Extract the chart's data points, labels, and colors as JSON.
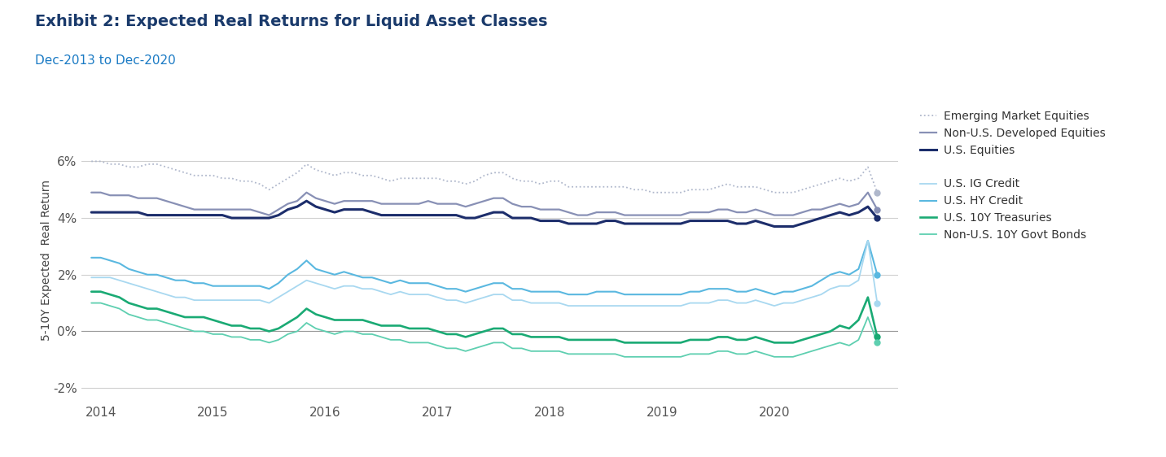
{
  "title": "Exhibit 2: Expected Real Returns for Liquid Asset Classes",
  "subtitle": "Dec-2013 to Dec-2020",
  "ylabel": "5-10Y Expected  Real Return",
  "xlim": [
    2013.83,
    2021.1
  ],
  "ylim": [
    -0.025,
    0.075
  ],
  "yticks": [
    -0.02,
    0.0,
    0.02,
    0.04,
    0.06
  ],
  "ytick_labels": [
    "-2%",
    "0%",
    "2%",
    "4%",
    "6%"
  ],
  "xticks": [
    2014,
    2015,
    2016,
    2017,
    2018,
    2019,
    2020
  ],
  "background_color": "#ffffff",
  "grid_color": "#d0d0d0",
  "title_color": "#1a3a6b",
  "subtitle_color": "#1a7ac4",
  "series": [
    {
      "name": "Emerging Market Equities",
      "color": "#b0b8cc",
      "linewidth": 1.3,
      "linestyle": "dotted",
      "values": [
        0.06,
        0.06,
        0.059,
        0.059,
        0.058,
        0.058,
        0.059,
        0.059,
        0.058,
        0.057,
        0.056,
        0.055,
        0.055,
        0.055,
        0.054,
        0.054,
        0.053,
        0.053,
        0.052,
        0.05,
        0.052,
        0.054,
        0.056,
        0.059,
        0.057,
        0.056,
        0.055,
        0.056,
        0.056,
        0.055,
        0.055,
        0.054,
        0.053,
        0.054,
        0.054,
        0.054,
        0.054,
        0.054,
        0.053,
        0.053,
        0.052,
        0.053,
        0.055,
        0.056,
        0.056,
        0.054,
        0.053,
        0.053,
        0.052,
        0.053,
        0.053,
        0.051,
        0.051,
        0.051,
        0.051,
        0.051,
        0.051,
        0.051,
        0.05,
        0.05,
        0.049,
        0.049,
        0.049,
        0.049,
        0.05,
        0.05,
        0.05,
        0.051,
        0.052,
        0.051,
        0.051,
        0.051,
        0.05,
        0.049,
        0.049,
        0.049,
        0.05,
        0.051,
        0.052,
        0.053,
        0.054,
        0.053,
        0.054,
        0.058,
        0.049
      ]
    },
    {
      "name": "Non-U.S. Developed Equities",
      "color": "#8890b5",
      "linewidth": 1.6,
      "linestyle": "solid",
      "values": [
        0.049,
        0.049,
        0.048,
        0.048,
        0.048,
        0.047,
        0.047,
        0.047,
        0.046,
        0.045,
        0.044,
        0.043,
        0.043,
        0.043,
        0.043,
        0.043,
        0.043,
        0.043,
        0.042,
        0.041,
        0.043,
        0.045,
        0.046,
        0.049,
        0.047,
        0.046,
        0.045,
        0.046,
        0.046,
        0.046,
        0.046,
        0.045,
        0.045,
        0.045,
        0.045,
        0.045,
        0.046,
        0.045,
        0.045,
        0.045,
        0.044,
        0.045,
        0.046,
        0.047,
        0.047,
        0.045,
        0.044,
        0.044,
        0.043,
        0.043,
        0.043,
        0.042,
        0.041,
        0.041,
        0.042,
        0.042,
        0.042,
        0.041,
        0.041,
        0.041,
        0.041,
        0.041,
        0.041,
        0.041,
        0.042,
        0.042,
        0.042,
        0.043,
        0.043,
        0.042,
        0.042,
        0.043,
        0.042,
        0.041,
        0.041,
        0.041,
        0.042,
        0.043,
        0.043,
        0.044,
        0.045,
        0.044,
        0.045,
        0.049,
        0.043
      ]
    },
    {
      "name": "U.S. Equities",
      "color": "#1c2d6b",
      "linewidth": 2.2,
      "linestyle": "solid",
      "values": [
        0.042,
        0.042,
        0.042,
        0.042,
        0.042,
        0.042,
        0.041,
        0.041,
        0.041,
        0.041,
        0.041,
        0.041,
        0.041,
        0.041,
        0.041,
        0.04,
        0.04,
        0.04,
        0.04,
        0.04,
        0.041,
        0.043,
        0.044,
        0.046,
        0.044,
        0.043,
        0.042,
        0.043,
        0.043,
        0.043,
        0.042,
        0.041,
        0.041,
        0.041,
        0.041,
        0.041,
        0.041,
        0.041,
        0.041,
        0.041,
        0.04,
        0.04,
        0.041,
        0.042,
        0.042,
        0.04,
        0.04,
        0.04,
        0.039,
        0.039,
        0.039,
        0.038,
        0.038,
        0.038,
        0.038,
        0.039,
        0.039,
        0.038,
        0.038,
        0.038,
        0.038,
        0.038,
        0.038,
        0.038,
        0.039,
        0.039,
        0.039,
        0.039,
        0.039,
        0.038,
        0.038,
        0.039,
        0.038,
        0.037,
        0.037,
        0.037,
        0.038,
        0.039,
        0.04,
        0.041,
        0.042,
        0.041,
        0.042,
        0.044,
        0.04
      ]
    },
    {
      "name": "U.S. HY Credit",
      "color": "#5ab8e0",
      "linewidth": 1.5,
      "linestyle": "solid",
      "values": [
        0.026,
        0.026,
        0.025,
        0.024,
        0.022,
        0.021,
        0.02,
        0.02,
        0.019,
        0.018,
        0.018,
        0.017,
        0.017,
        0.016,
        0.016,
        0.016,
        0.016,
        0.016,
        0.016,
        0.015,
        0.017,
        0.02,
        0.022,
        0.025,
        0.022,
        0.021,
        0.02,
        0.021,
        0.02,
        0.019,
        0.019,
        0.018,
        0.017,
        0.018,
        0.017,
        0.017,
        0.017,
        0.016,
        0.015,
        0.015,
        0.014,
        0.015,
        0.016,
        0.017,
        0.017,
        0.015,
        0.015,
        0.014,
        0.014,
        0.014,
        0.014,
        0.013,
        0.013,
        0.013,
        0.014,
        0.014,
        0.014,
        0.013,
        0.013,
        0.013,
        0.013,
        0.013,
        0.013,
        0.013,
        0.014,
        0.014,
        0.015,
        0.015,
        0.015,
        0.014,
        0.014,
        0.015,
        0.014,
        0.013,
        0.014,
        0.014,
        0.015,
        0.016,
        0.018,
        0.02,
        0.021,
        0.02,
        0.022,
        0.032,
        0.02
      ]
    },
    {
      "name": "U.S. IG Credit",
      "color": "#a8d8f0",
      "linewidth": 1.3,
      "linestyle": "solid",
      "values": [
        0.019,
        0.019,
        0.019,
        0.018,
        0.017,
        0.016,
        0.015,
        0.014,
        0.013,
        0.012,
        0.012,
        0.011,
        0.011,
        0.011,
        0.011,
        0.011,
        0.011,
        0.011,
        0.011,
        0.01,
        0.012,
        0.014,
        0.016,
        0.018,
        0.017,
        0.016,
        0.015,
        0.016,
        0.016,
        0.015,
        0.015,
        0.014,
        0.013,
        0.014,
        0.013,
        0.013,
        0.013,
        0.012,
        0.011,
        0.011,
        0.01,
        0.011,
        0.012,
        0.013,
        0.013,
        0.011,
        0.011,
        0.01,
        0.01,
        0.01,
        0.01,
        0.009,
        0.009,
        0.009,
        0.009,
        0.009,
        0.009,
        0.009,
        0.009,
        0.009,
        0.009,
        0.009,
        0.009,
        0.009,
        0.01,
        0.01,
        0.01,
        0.011,
        0.011,
        0.01,
        0.01,
        0.011,
        0.01,
        0.009,
        0.01,
        0.01,
        0.011,
        0.012,
        0.013,
        0.015,
        0.016,
        0.016,
        0.018,
        0.032,
        0.01
      ]
    },
    {
      "name": "U.S. 10Y Treasuries",
      "color": "#1aaa74",
      "linewidth": 1.9,
      "linestyle": "solid",
      "values": [
        0.014,
        0.014,
        0.013,
        0.012,
        0.01,
        0.009,
        0.008,
        0.008,
        0.007,
        0.006,
        0.005,
        0.005,
        0.005,
        0.004,
        0.003,
        0.002,
        0.002,
        0.001,
        0.001,
        0.0,
        0.001,
        0.003,
        0.005,
        0.008,
        0.006,
        0.005,
        0.004,
        0.004,
        0.004,
        0.004,
        0.003,
        0.002,
        0.002,
        0.002,
        0.001,
        0.001,
        0.001,
        0.0,
        -0.001,
        -0.001,
        -0.002,
        -0.001,
        0.0,
        0.001,
        0.001,
        -0.001,
        -0.001,
        -0.002,
        -0.002,
        -0.002,
        -0.002,
        -0.003,
        -0.003,
        -0.003,
        -0.003,
        -0.003,
        -0.003,
        -0.004,
        -0.004,
        -0.004,
        -0.004,
        -0.004,
        -0.004,
        -0.004,
        -0.003,
        -0.003,
        -0.003,
        -0.002,
        -0.002,
        -0.003,
        -0.003,
        -0.002,
        -0.003,
        -0.004,
        -0.004,
        -0.004,
        -0.003,
        -0.002,
        -0.001,
        0.0,
        0.002,
        0.001,
        0.004,
        0.012,
        -0.002
      ]
    },
    {
      "name": "Non-U.S. 10Y Govt Bonds",
      "color": "#5ecfb0",
      "linewidth": 1.3,
      "linestyle": "solid",
      "values": [
        0.01,
        0.01,
        0.009,
        0.008,
        0.006,
        0.005,
        0.004,
        0.004,
        0.003,
        0.002,
        0.001,
        0.0,
        0.0,
        -0.001,
        -0.001,
        -0.002,
        -0.002,
        -0.003,
        -0.003,
        -0.004,
        -0.003,
        -0.001,
        0.0,
        0.003,
        0.001,
        0.0,
        -0.001,
        0.0,
        0.0,
        -0.001,
        -0.001,
        -0.002,
        -0.003,
        -0.003,
        -0.004,
        -0.004,
        -0.004,
        -0.005,
        -0.006,
        -0.006,
        -0.007,
        -0.006,
        -0.005,
        -0.004,
        -0.004,
        -0.006,
        -0.006,
        -0.007,
        -0.007,
        -0.007,
        -0.007,
        -0.008,
        -0.008,
        -0.008,
        -0.008,
        -0.008,
        -0.008,
        -0.009,
        -0.009,
        -0.009,
        -0.009,
        -0.009,
        -0.009,
        -0.009,
        -0.008,
        -0.008,
        -0.008,
        -0.007,
        -0.007,
        -0.008,
        -0.008,
        -0.007,
        -0.008,
        -0.009,
        -0.009,
        -0.009,
        -0.008,
        -0.007,
        -0.006,
        -0.005,
        -0.004,
        -0.005,
        -0.003,
        0.005,
        -0.004
      ]
    }
  ]
}
